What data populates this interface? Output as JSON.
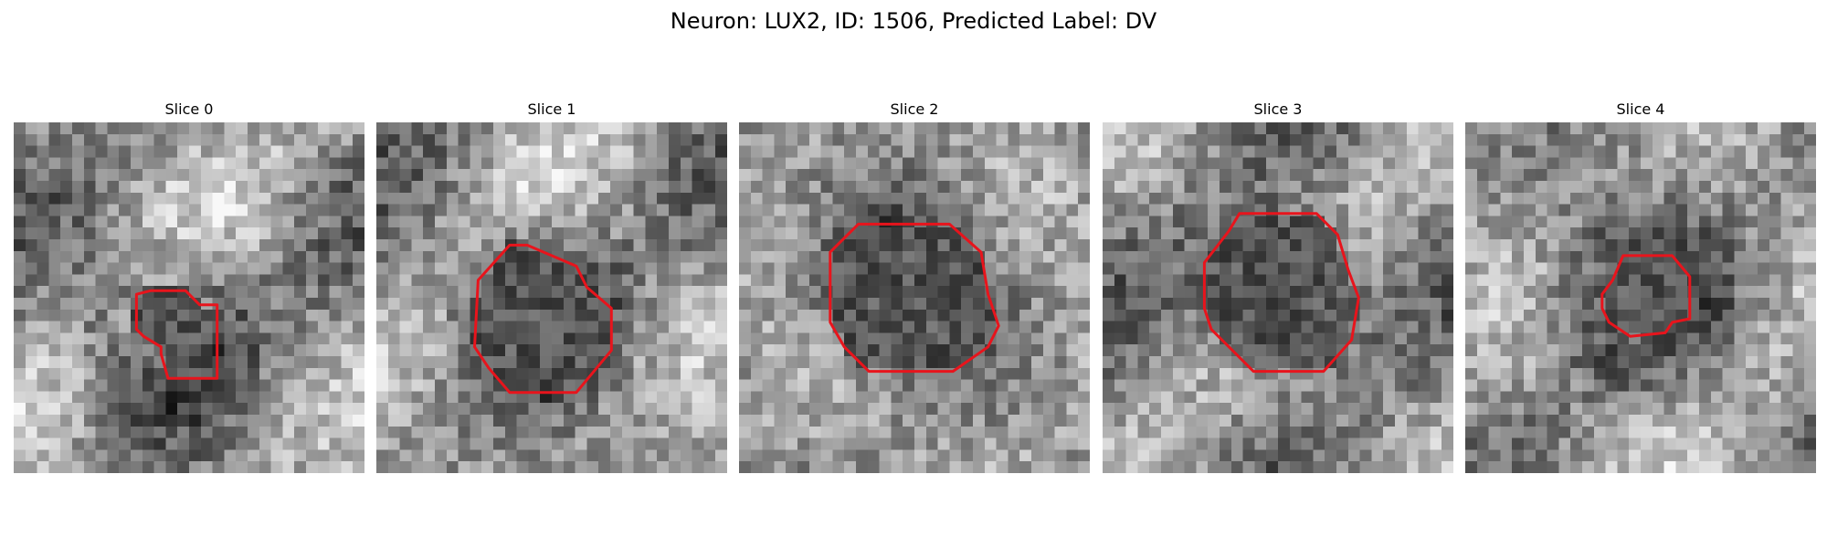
{
  "figure": {
    "title": "Neuron: LUX2, ID: 1506, Predicted Label: DV"
  },
  "colors": {
    "contour": "#e8141c",
    "background": "#ffffff"
  },
  "panels": [
    {
      "title": "Slice 0",
      "seed": 11,
      "contour": [
        [
          0.35,
          0.49
        ],
        [
          0.39,
          0.48
        ],
        [
          0.49,
          0.48
        ],
        [
          0.53,
          0.52
        ],
        [
          0.58,
          0.52
        ],
        [
          0.58,
          0.73
        ],
        [
          0.44,
          0.73
        ],
        [
          0.42,
          0.66
        ],
        [
          0.42,
          0.64
        ],
        [
          0.37,
          0.61
        ],
        [
          0.35,
          0.59
        ],
        [
          0.35,
          0.55
        ]
      ]
    },
    {
      "title": "Slice 1",
      "seed": 23,
      "contour": [
        [
          0.29,
          0.45
        ],
        [
          0.38,
          0.35
        ],
        [
          0.43,
          0.35
        ],
        [
          0.5,
          0.38
        ],
        [
          0.57,
          0.41
        ],
        [
          0.6,
          0.47
        ],
        [
          0.67,
          0.53
        ],
        [
          0.67,
          0.65
        ],
        [
          0.57,
          0.77
        ],
        [
          0.38,
          0.77
        ],
        [
          0.32,
          0.7
        ],
        [
          0.28,
          0.64
        ]
      ]
    },
    {
      "title": "Slice 2",
      "seed": 37,
      "contour": [
        [
          0.26,
          0.37
        ],
        [
          0.3,
          0.33
        ],
        [
          0.34,
          0.29
        ],
        [
          0.41,
          0.29
        ],
        [
          0.6,
          0.29
        ],
        [
          0.69,
          0.37
        ],
        [
          0.71,
          0.49
        ],
        [
          0.74,
          0.58
        ],
        [
          0.71,
          0.64
        ],
        [
          0.61,
          0.71
        ],
        [
          0.37,
          0.71
        ],
        [
          0.3,
          0.64
        ],
        [
          0.26,
          0.57
        ]
      ]
    },
    {
      "title": "Slice 3",
      "seed": 53,
      "contour": [
        [
          0.29,
          0.4
        ],
        [
          0.36,
          0.31
        ],
        [
          0.39,
          0.26
        ],
        [
          0.61,
          0.26
        ],
        [
          0.67,
          0.32
        ],
        [
          0.7,
          0.42
        ],
        [
          0.73,
          0.5
        ],
        [
          0.71,
          0.62
        ],
        [
          0.63,
          0.71
        ],
        [
          0.43,
          0.71
        ],
        [
          0.37,
          0.65
        ],
        [
          0.31,
          0.59
        ],
        [
          0.29,
          0.53
        ]
      ]
    },
    {
      "title": "Slice 4",
      "seed": 71,
      "contour": [
        [
          0.42,
          0.45
        ],
        [
          0.45,
          0.38
        ],
        [
          0.59,
          0.38
        ],
        [
          0.64,
          0.44
        ],
        [
          0.64,
          0.56
        ],
        [
          0.59,
          0.57
        ],
        [
          0.57,
          0.6
        ],
        [
          0.47,
          0.61
        ],
        [
          0.41,
          0.57
        ],
        [
          0.39,
          0.53
        ],
        [
          0.39,
          0.49
        ]
      ]
    }
  ]
}
